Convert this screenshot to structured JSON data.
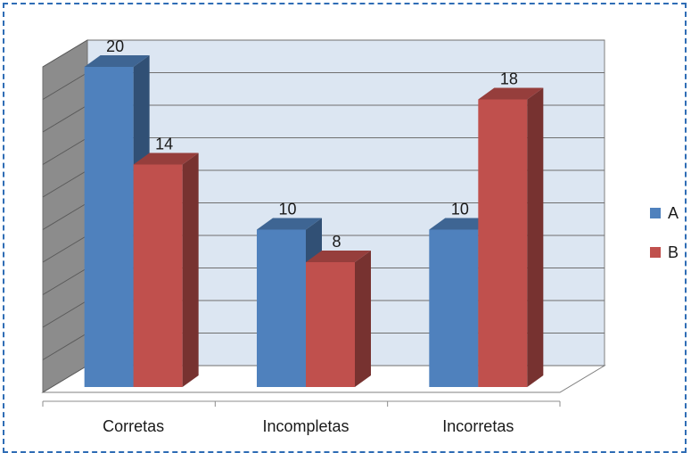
{
  "chart_data": {
    "type": "bar",
    "categories": [
      "Corretas",
      "Incompletas",
      "Incorretas"
    ],
    "series": [
      {
        "name": "A",
        "values": [
          20,
          10,
          10
        ],
        "color": "#4f81bd"
      },
      {
        "name": "B",
        "values": [
          14,
          8,
          18
        ],
        "color": "#c0504d"
      }
    ],
    "ylim": [
      0,
      20
    ],
    "grid": true,
    "legend": "right",
    "data_labels": true,
    "style": "3d-clustered-column"
  }
}
